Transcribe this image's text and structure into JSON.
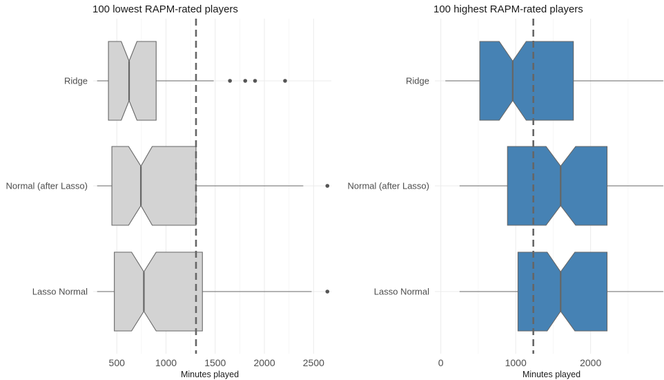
{
  "chart_data": [
    {
      "type": "boxplot",
      "title": "100 lowest RAPM-rated players",
      "xlabel": "Minutes played",
      "ylabel": "",
      "xlim": [
        260,
        2680
      ],
      "xticks": [
        500,
        1000,
        1500,
        2000,
        2500
      ],
      "xtick_labels": [
        "500",
        "1000",
        "1500",
        "2000",
        "2500"
      ],
      "grid": true,
      "notched": true,
      "fill_color": "#d3d3d3",
      "edge_color": "#666666",
      "reference_line": {
        "value": 1305,
        "style": "dashed",
        "color": "#666666"
      },
      "categories": [
        "Ridge",
        "Normal (after Lasso)",
        "Lasso Normal"
      ],
      "boxes": [
        {
          "category": "Ridge",
          "whisker_low": 300,
          "q1": 415,
          "notch_low": 545,
          "median": 625,
          "notch_high": 705,
          "q3": 900,
          "whisker_high": 1485,
          "outliers": [
            1650,
            1805,
            1905,
            2210
          ]
        },
        {
          "category": "Normal (after Lasso)",
          "whisker_low": 300,
          "q1": 450,
          "notch_low": 620,
          "median": 745,
          "notch_high": 860,
          "q3": 1305,
          "whisker_high": 2395,
          "outliers": [
            2640
          ]
        },
        {
          "category": "Lasso Normal",
          "whisker_low": 300,
          "q1": 475,
          "notch_low": 650,
          "median": 775,
          "notch_high": 900,
          "q3": 1370,
          "whisker_high": 2480,
          "outliers": [
            2640
          ]
        }
      ]
    },
    {
      "type": "boxplot",
      "title": "100 highest RAPM-rated players",
      "xlabel": "Minutes played",
      "ylabel": "",
      "xlim": [
        -80,
        2980
      ],
      "xticks": [
        0,
        1000,
        2000
      ],
      "xtick_labels": [
        "0",
        "1000",
        "2000"
      ],
      "grid": true,
      "notched": true,
      "fill_color": "#4682b4",
      "edge_color": "#666666",
      "reference_line": {
        "value": 1235,
        "style": "dashed",
        "color": "#666666"
      },
      "categories": [
        "Ridge",
        "Normal (after Lasso)",
        "Lasso Normal"
      ],
      "boxes": [
        {
          "category": "Ridge",
          "whisker_low": 60,
          "q1": 520,
          "notch_low": 780,
          "median": 960,
          "notch_high": 1140,
          "q3": 1770,
          "whisker_high": 2970,
          "outliers": []
        },
        {
          "category": "Normal (after Lasso)",
          "whisker_low": 250,
          "q1": 890,
          "notch_low": 1405,
          "median": 1600,
          "notch_high": 1800,
          "q3": 2220,
          "whisker_high": 2970,
          "outliers": []
        },
        {
          "category": "Lasso Normal",
          "whisker_low": 250,
          "q1": 1030,
          "notch_low": 1420,
          "median": 1600,
          "notch_high": 1790,
          "q3": 2220,
          "whisker_high": 2970,
          "outliers": []
        }
      ]
    }
  ]
}
